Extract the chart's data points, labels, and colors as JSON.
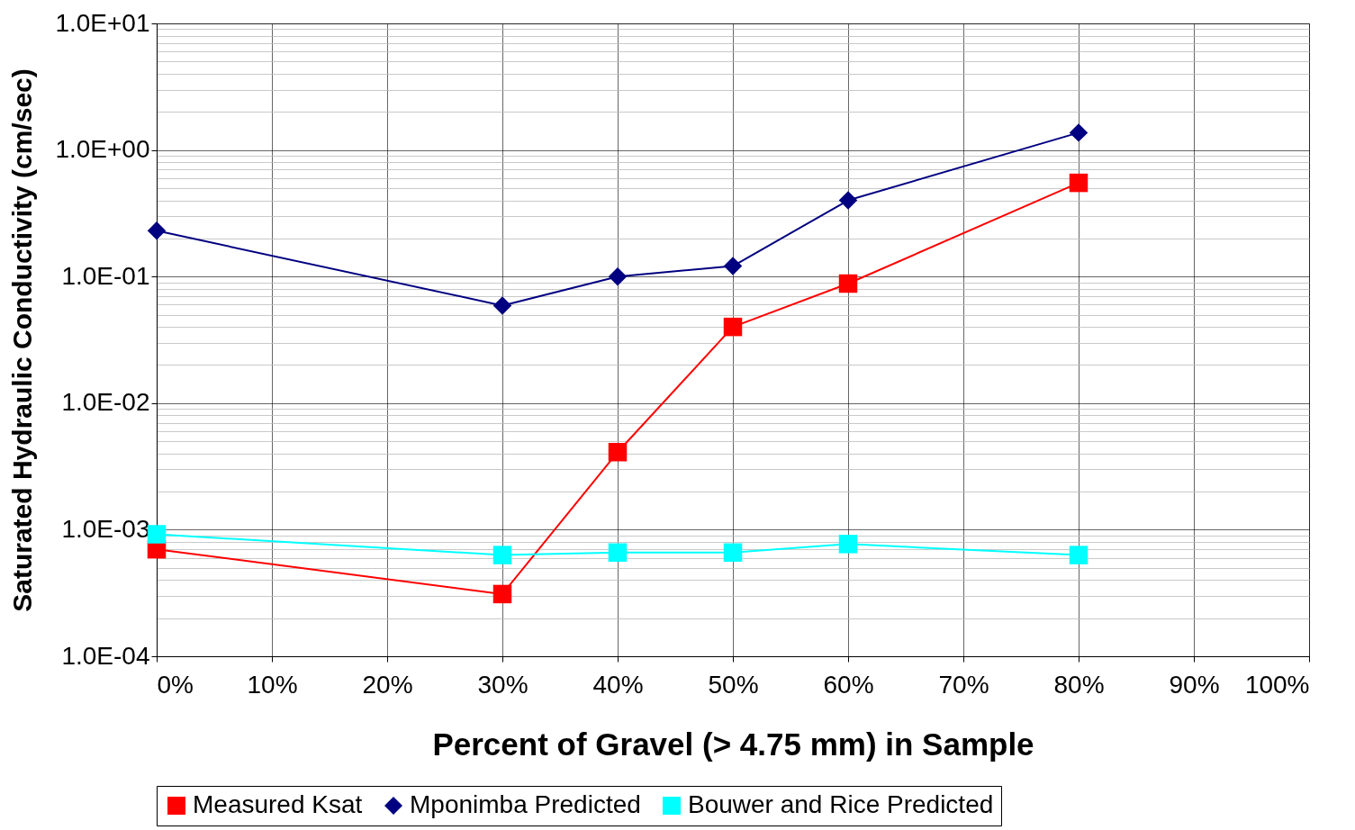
{
  "chart_data": {
    "type": "line",
    "xlabel": "Percent of Gravel (> 4.75 mm) in Sample",
    "ylabel": "Saturated Hydraulic Conductivity (cm/sec)",
    "log": true,
    "grid": true,
    "legend": "bottom",
    "xlim": [
      0,
      100
    ],
    "xticks": [
      {
        "value": 0,
        "label": "0%"
      },
      {
        "value": 10,
        "label": "10%"
      },
      {
        "value": 20,
        "label": "20%"
      },
      {
        "value": 30,
        "label": "30%"
      },
      {
        "value": 40,
        "label": "40%"
      },
      {
        "value": 50,
        "label": "50%"
      },
      {
        "value": 60,
        "label": "60%"
      },
      {
        "value": 70,
        "label": "70%"
      },
      {
        "value": 80,
        "label": "80%"
      },
      {
        "value": 90,
        "label": "90%"
      },
      {
        "value": 100,
        "label": "100%"
      }
    ],
    "ylim": [
      0.0001,
      10
    ],
    "yticks": [
      {
        "value": 0.0001,
        "label": "1.0E-04"
      },
      {
        "value": 0.001,
        "label": "1.0E-03"
      },
      {
        "value": 0.01,
        "label": "1.0E-02"
      },
      {
        "value": 0.1,
        "label": "1.0E-01"
      },
      {
        "value": 1,
        "label": "1.0E+00"
      },
      {
        "value": 10,
        "label": "1.0E+01"
      }
    ],
    "x": [
      0,
      30,
      40,
      50,
      60,
      80
    ],
    "series": [
      {
        "name": "Measured Ksat",
        "color": "#ff0000",
        "marker": "square",
        "values": [
          0.0007,
          0.00031,
          0.0041,
          0.04,
          0.088,
          0.55
        ]
      },
      {
        "name": "Mponimba Predicted",
        "color": "#000080",
        "marker": "diamond",
        "values": [
          0.23,
          0.059,
          0.1,
          0.121,
          0.4,
          1.37
        ]
      },
      {
        "name": "Bouwer and Rice Predicted",
        "color": "#00ffff",
        "marker": "square",
        "values": [
          0.00092,
          0.00063,
          0.00066,
          0.00066,
          0.00077,
          0.00063
        ]
      }
    ]
  }
}
